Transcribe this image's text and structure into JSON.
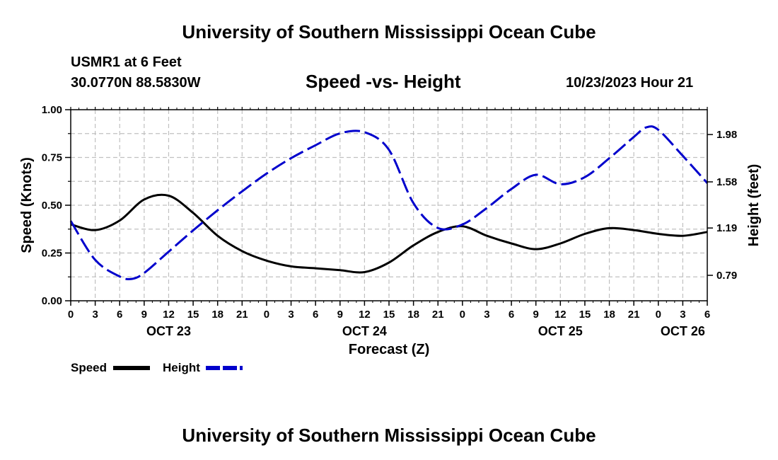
{
  "header": {
    "title": "University of Southern Mississippi Ocean Cube",
    "station": "USMR1 at 6 Feet",
    "coords": "30.0770N  88.5830W",
    "subtitle": "Speed -vs- Height",
    "datetime": "10/23/2023 Hour 21"
  },
  "footer": {
    "title": "University of Southern Mississippi Ocean Cube"
  },
  "chart_data": {
    "type": "line",
    "title": "Speed -vs- Height",
    "xlabel": "Forecast (Z)",
    "ylabel_left": "Speed (Knots)",
    "ylabel_right": "Height (feet)",
    "ylim_left": [
      0,
      1
    ],
    "ylim_right": [
      0.575,
      2.19
    ],
    "xlim_hours": [
      0,
      78
    ],
    "x_tick_labels": [
      "0",
      "3",
      "6",
      "9",
      "12",
      "15",
      "18",
      "21",
      "0",
      "3",
      "6",
      "9",
      "12",
      "15",
      "18",
      "21",
      "0",
      "3",
      "6",
      "9",
      "12",
      "15",
      "18",
      "21",
      "0",
      "3",
      "6"
    ],
    "day_labels": [
      {
        "label": "OCT 23",
        "hour": 12
      },
      {
        "label": "OCT 24",
        "hour": 36
      },
      {
        "label": "OCT 25",
        "hour": 60
      },
      {
        "label": "OCT 26",
        "hour": 75
      }
    ],
    "y_left_ticks": [
      "0.00",
      "0.25",
      "0.50",
      "0.75",
      "1.00"
    ],
    "y_right_ticks": [
      {
        "label": "0.79",
        "value": 0.79
      },
      {
        "label": "1.19",
        "value": 1.19
      },
      {
        "label": "1.58",
        "value": 1.58
      },
      {
        "label": "1.98",
        "value": 1.98
      }
    ],
    "grid": true,
    "legend": [
      {
        "name": "Speed",
        "color": "#000000",
        "style": "solid"
      },
      {
        "name": "Height",
        "color": "#0000cc",
        "style": "dashed"
      }
    ],
    "series": [
      {
        "name": "Speed",
        "axis": "left",
        "color": "#000000",
        "x": [
          0,
          3,
          6,
          9,
          12,
          15,
          18,
          21,
          24,
          27,
          30,
          33,
          36,
          39,
          42,
          45,
          48,
          51,
          54,
          57,
          60,
          63,
          66,
          69,
          72,
          75,
          78
        ],
        "y": [
          0.4,
          0.37,
          0.42,
          0.53,
          0.55,
          0.46,
          0.34,
          0.26,
          0.21,
          0.18,
          0.17,
          0.16,
          0.15,
          0.2,
          0.29,
          0.36,
          0.39,
          0.34,
          0.3,
          0.27,
          0.3,
          0.35,
          0.38,
          0.37,
          0.35,
          0.34,
          0.36
        ]
      },
      {
        "name": "Height",
        "axis": "right",
        "color": "#0000cc",
        "x": [
          0,
          3,
          6,
          7.5,
          9,
          12,
          15,
          18,
          21,
          24,
          27,
          30,
          33,
          36,
          39,
          42,
          45,
          48,
          51,
          54,
          57,
          60,
          63,
          66,
          69,
          70.5,
          72,
          75,
          78
        ],
        "y": [
          1.25,
          0.92,
          0.78,
          0.76,
          0.81,
          0.99,
          1.17,
          1.34,
          1.5,
          1.65,
          1.78,
          1.89,
          1.99,
          2.0,
          1.85,
          1.4,
          1.19,
          1.22,
          1.36,
          1.52,
          1.64,
          1.56,
          1.62,
          1.78,
          1.96,
          2.04,
          2.02,
          1.8,
          1.57
        ]
      }
    ]
  }
}
